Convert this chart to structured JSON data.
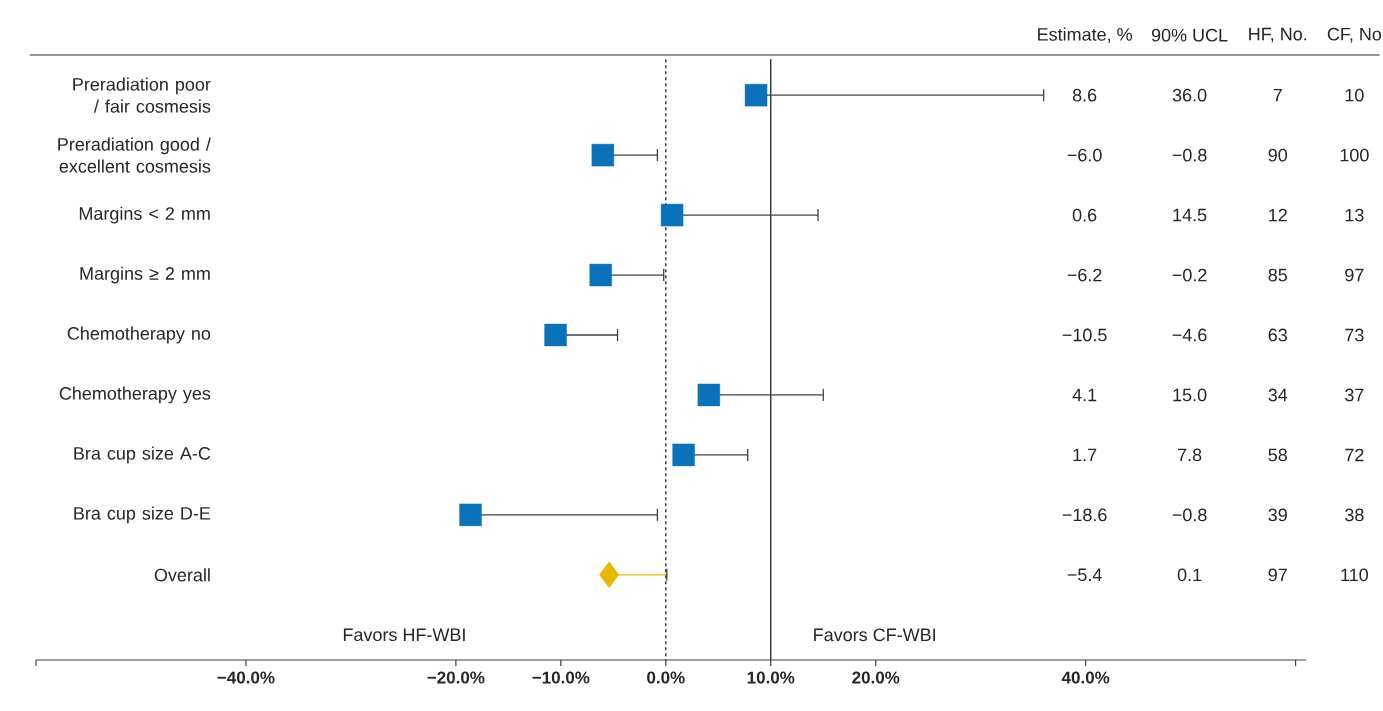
{
  "chart_data": {
    "type": "scatter",
    "orientation": "horizontal",
    "categories": [
      "Preradiation poor / fair cosmesis",
      "Preradiation good / excellent cosmesis",
      "Margins < 2 mm",
      "Margins ≥ 2 mm",
      "Chemotherapy no",
      "Chemotherapy yes",
      "Bra cup size A-C",
      "Bra cup size D-E",
      "Overall"
    ],
    "series": [
      {
        "color": "#0a72ba",
        "marker": "square",
        "values": [
          8.6,
          -6.0,
          0.6,
          -6.2,
          -10.5,
          4.1,
          1.7,
          -18.6,
          null
        ],
        "errors": [
          [
            8.6,
            36.0
          ],
          [
            -6.0,
            -0.8
          ],
          [
            0.6,
            14.5
          ],
          [
            -6.2,
            -0.2
          ],
          [
            -10.5,
            -4.6
          ],
          [
            4.1,
            15.0
          ],
          [
            1.7,
            7.8
          ],
          [
            -18.6,
            -0.8
          ],
          null
        ]
      },
      {
        "color": "#e6b800",
        "marker": "diamond",
        "values": [
          null,
          null,
          null,
          null,
          null,
          null,
          null,
          null,
          -5.4
        ],
        "errors": [
          null,
          null,
          null,
          null,
          null,
          null,
          null,
          null,
          [
            -5.4,
            0.1
          ]
        ]
      }
    ],
    "xlim": [
      -60,
      61
    ],
    "xticks": [
      {
        "value": -60,
        "label": null
      },
      {
        "value": -40,
        "label": "−40.0%"
      },
      {
        "value": -20,
        "label": "−20.0%"
      },
      {
        "value": -10,
        "label": "−10.0%"
      },
      {
        "value": 0,
        "label": "0.0%"
      },
      {
        "value": 10,
        "label": "10.0%"
      },
      {
        "value": 20,
        "label": "20.0%"
      },
      {
        "value": 40,
        "label": "40.0%"
      },
      {
        "value": 60,
        "label": null
      }
    ],
    "ref_lines": [
      {
        "axis": "x",
        "value": 0,
        "line_style": "dotted",
        "color": "#222222"
      },
      {
        "axis": "x",
        "value": 10,
        "line_style": "solid",
        "color": "#222222"
      }
    ],
    "grid": false,
    "annotations": [
      "Estimate, %",
      "90% UCL",
      "HF, No.",
      "CF, No",
      "8.6",
      "36.0",
      "7",
      "10",
      "−6.0",
      "−0.8",
      "90",
      "100",
      "0.6",
      "14.5",
      "12",
      "13",
      "−6.2",
      "−0.2",
      "85",
      "97",
      "−10.5",
      "−4.6",
      "63",
      "73",
      "4.1",
      "15.0",
      "34",
      "37",
      "1.7",
      "7.8",
      "58",
      "72",
      "−18.6",
      "−0.8",
      "39",
      "38",
      "−5.4",
      "0.1",
      "97",
      "110",
      "Favors HF-WBI",
      "Favors CF-WBI"
    ]
  }
}
